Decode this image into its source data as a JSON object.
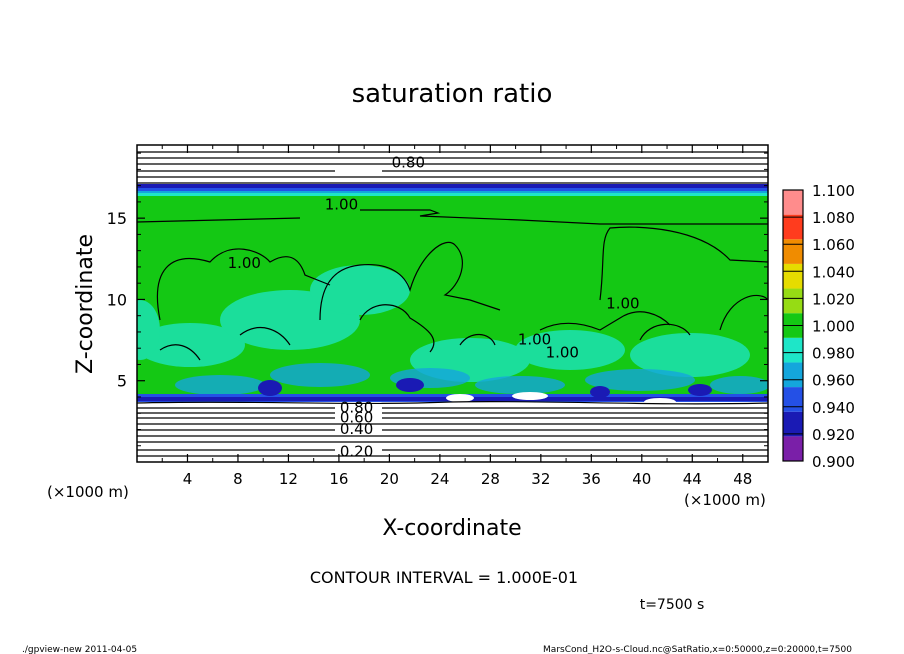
{
  "chart_data": {
    "type": "heatmap",
    "title": "saturation ratio",
    "xlabel": "X-coordinate",
    "ylabel": "Z-coordinate",
    "x_unit": "(×1000 m)",
    "y_unit": "(×1000 m)",
    "xlim": [
      0,
      50
    ],
    "ylim": [
      0,
      19.5
    ],
    "x_ticks": [
      4,
      8,
      12,
      16,
      20,
      24,
      28,
      32,
      36,
      40,
      44,
      48
    ],
    "y_ticks": [
      5,
      10,
      15
    ],
    "colorbar": {
      "levels": [
        0.9,
        0.92,
        0.94,
        0.96,
        0.98,
        1.0,
        1.02,
        1.04,
        1.06,
        1.08,
        1.1
      ],
      "labels": [
        "0.900",
        "0.920",
        "0.940",
        "0.960",
        "0.980",
        "1.000",
        "1.020",
        "1.040",
        "1.060",
        "1.080",
        "1.100"
      ],
      "colors": [
        "#7a1fa8",
        "#1a1ab4",
        "#2450e6",
        "#14a6dc",
        "#1ee6c8",
        "#14c814",
        "#96dc14",
        "#e6dc00",
        "#f08c00",
        "#ff3c1e",
        "#ff8c8c"
      ]
    },
    "contour_labels": [
      {
        "text": "0.80",
        "x": 21.5,
        "z": 18.5
      },
      {
        "text": "1.00",
        "x": 16.2,
        "z": 15.9
      },
      {
        "text": "1.00",
        "x": 8.5,
        "z": 12.3
      },
      {
        "text": "1.00",
        "x": 38.5,
        "z": 9.8
      },
      {
        "text": "1.00",
        "x": 31.5,
        "z": 7.6
      },
      {
        "text": "1.00",
        "x": 33.7,
        "z": 6.8
      },
      {
        "text": "0.80",
        "x": 17.4,
        "z": 3.4
      },
      {
        "text": "0.60",
        "x": 17.4,
        "z": 2.8
      },
      {
        "text": "0.40",
        "x": 17.4,
        "z": 2.1
      },
      {
        "text": "0.20",
        "x": 17.4,
        "z": 0.7
      }
    ],
    "contour_interval": "CONTOUR INTERVAL = 1.000E-01",
    "time_label": "t=7500 s"
  },
  "footer": {
    "left": "./gpview-new   2011-04-05",
    "right": "MarsCond_H2O-s-Cloud.nc@SatRatio,x=0:50000,z=0:20000,t=7500"
  }
}
